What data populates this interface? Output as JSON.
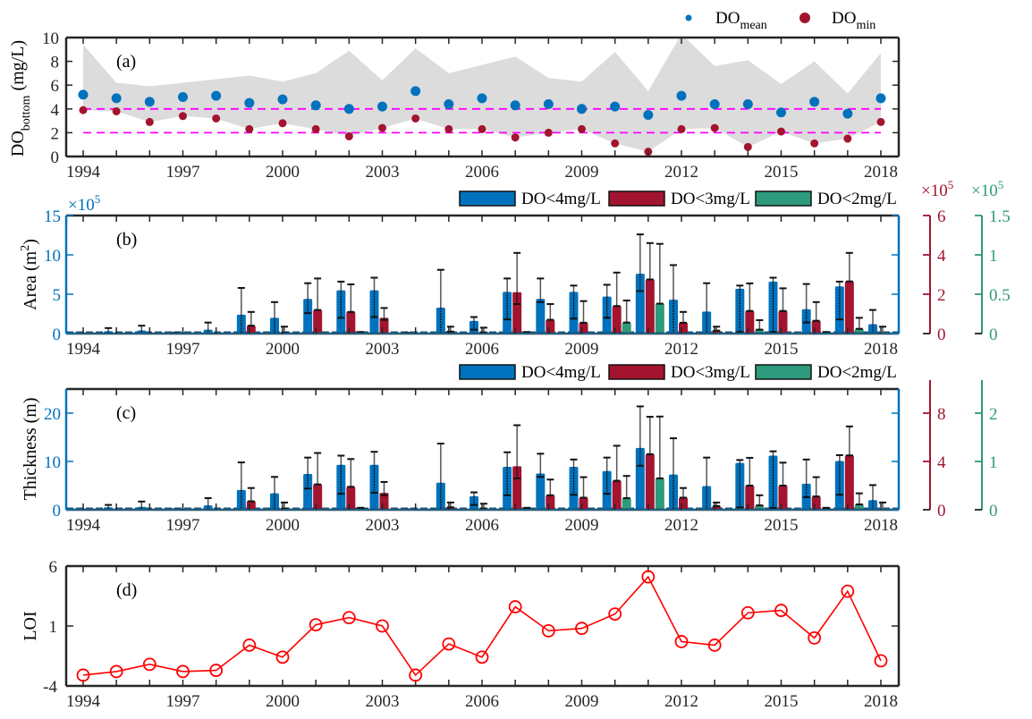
{
  "chart_data": [
    {
      "id": "a",
      "type": "scatter",
      "panel_label": "(a)",
      "ylabel": "DO",
      "ylabel_sub": "bottom",
      "ylabel_unit": " (mg/L)",
      "ylim": [
        0,
        10
      ],
      "yticks": [
        0,
        2,
        4,
        6,
        8,
        10
      ],
      "xlim": [
        1993.5,
        2018.5
      ],
      "xticks": [
        1994,
        1997,
        2000,
        2003,
        2006,
        2009,
        2012,
        2015,
        2018
      ],
      "x": [
        1994,
        1995,
        1996,
        1997,
        1998,
        1999,
        2000,
        2001,
        2002,
        2003,
        2004,
        2005,
        2006,
        2007,
        2008,
        2009,
        2010,
        2011,
        2012,
        2013,
        2014,
        2015,
        2016,
        2017,
        2018
      ],
      "legend": [
        {
          "base": "DO",
          "sub": "mean",
          "color": "#0072BD"
        },
        {
          "base": "DO",
          "sub": "min",
          "color": "#A2142F"
        }
      ],
      "series": [
        {
          "name": "DO_mean",
          "color": "#0072BD",
          "values": [
            5.2,
            4.9,
            4.6,
            5.0,
            5.1,
            4.5,
            4.8,
            4.3,
            4.0,
            4.2,
            5.5,
            4.4,
            4.9,
            4.3,
            4.4,
            4.0,
            4.2,
            3.5,
            5.1,
            4.4,
            4.4,
            3.7,
            4.6,
            3.6,
            4.9
          ]
        },
        {
          "name": "DO_min",
          "color": "#A2142F",
          "values": [
            3.9,
            3.8,
            2.9,
            3.4,
            3.2,
            2.3,
            2.8,
            2.3,
            1.7,
            2.4,
            3.2,
            2.3,
            2.3,
            1.6,
            2.0,
            2.3,
            1.1,
            0.4,
            2.3,
            2.4,
            0.8,
            2.1,
            1.1,
            1.5,
            2.9
          ]
        }
      ],
      "band": {
        "name": "DO range",
        "color": "#DCDCDC",
        "upper": [
          9.4,
          6.2,
          5.9,
          6.2,
          6.5,
          6.8,
          6.3,
          7.0,
          8.9,
          6.4,
          9.1,
          7.0,
          7.7,
          8.4,
          6.6,
          6.3,
          8.8,
          5.5,
          10.3,
          7.6,
          8.1,
          6.1,
          8.0,
          5.3,
          8.7
        ],
        "lower": [
          3.9,
          3.8,
          2.9,
          3.4,
          3.2,
          2.3,
          2.8,
          2.3,
          1.7,
          2.4,
          3.2,
          2.3,
          2.3,
          1.6,
          2.0,
          2.3,
          1.1,
          0.4,
          2.3,
          2.4,
          0.8,
          2.1,
          1.1,
          1.5,
          2.9
        ]
      },
      "reference_lines": [
        {
          "y": 4,
          "color": "#FF00FF",
          "style": "dashed"
        },
        {
          "y": 2,
          "color": "#FF00FF",
          "style": "dashed"
        }
      ]
    },
    {
      "id": "b",
      "type": "bar",
      "panel_label": "(b)",
      "ylabel": "Area (m",
      "ylabel_sup": "2",
      "ylabel_end": ")",
      "xticks": [
        1994,
        1997,
        2000,
        2003,
        2006,
        2009,
        2012,
        2015,
        2018
      ],
      "x": [
        1994,
        1995,
        1996,
        1997,
        1998,
        1999,
        2000,
        2001,
        2002,
        2003,
        2004,
        2005,
        2006,
        2007,
        2008,
        2009,
        2010,
        2011,
        2012,
        2013,
        2014,
        2015,
        2016,
        2017,
        2018
      ],
      "axes": [
        {
          "side": "left",
          "color": "#0072BD",
          "ylim": [
            0,
            15
          ],
          "yticks": [
            0,
            5,
            10,
            15
          ],
          "multiplier": "×10",
          "exponent": "5"
        },
        {
          "side": "right1",
          "color": "#A2142F",
          "ylim": [
            0,
            6
          ],
          "yticks": [
            0,
            2,
            4,
            6
          ],
          "multiplier": "×10",
          "exponent": "5"
        },
        {
          "side": "right2",
          "color": "#2E9A7C",
          "ylim": [
            0,
            1.5
          ],
          "yticks": [
            0,
            0.5,
            1,
            1.5
          ],
          "multiplier": "×10",
          "exponent": "5"
        }
      ],
      "legend": [
        {
          "label": "DO<4mg/L",
          "color": "#0072BD"
        },
        {
          "label": "DO<3mg/L",
          "color": "#A2142F"
        },
        {
          "label": "DO<2mg/L",
          "color": "#2E9A7C"
        }
      ],
      "series": [
        {
          "name": "DO<4mg/L",
          "axis": "left",
          "values": [
            0,
            0.3,
            0.4,
            0.1,
            0.5,
            2.4,
            2.0,
            4.4,
            5.5,
            5.5,
            0.1,
            3.3,
            1.6,
            5.3,
            4.4,
            5.3,
            4.7,
            7.6,
            4.3,
            2.8,
            5.7,
            6.6,
            3.1,
            6.0,
            1.2
          ],
          "err_low": [
            0,
            0.3,
            0.4,
            0.1,
            0.5,
            2.4,
            2.0,
            1.8,
            3.5,
            3.4,
            0.1,
            3.3,
            1.1,
            3.5,
            0.4,
            3.4,
            2.7,
            2.2,
            4.3,
            2.8,
            5.5,
            6.4,
            1.7,
            4.2,
            1.2
          ],
          "err_high": [
            0,
            0.7,
            1.0,
            0.1,
            1.4,
            5.8,
            4.0,
            6.4,
            6.6,
            7.1,
            0.1,
            8.1,
            2.1,
            7.0,
            7.0,
            6.1,
            6.2,
            12.6,
            8.7,
            6.4,
            6.1,
            7.1,
            6.3,
            6.6,
            3.0
          ]
        },
        {
          "name": "DO<3mg/L",
          "axis": "right1",
          "values": [
            0,
            0,
            0,
            0,
            0,
            0.4,
            0.05,
            1.2,
            1.1,
            0.8,
            0,
            0.1,
            0.05,
            2.1,
            0.7,
            0.55,
            1.4,
            2.75,
            0.55,
            0.15,
            1.15,
            1.15,
            0.65,
            2.65,
            0
          ],
          "err_low": [
            0,
            0,
            0,
            0,
            0,
            0,
            0,
            0,
            0,
            0.1,
            0,
            0,
            0,
            0.6,
            0,
            0,
            0,
            0,
            0,
            0,
            0,
            0,
            0,
            0,
            0
          ],
          "err_high": [
            0,
            0,
            0,
            0,
            0,
            1.1,
            0.35,
            2.8,
            2.5,
            1.3,
            0,
            0.35,
            0.3,
            4.1,
            1.5,
            1.65,
            3.1,
            4.6,
            1.1,
            0.35,
            2.55,
            2.3,
            1.6,
            4.1,
            0.35
          ]
        },
        {
          "name": "DO<2mg/L",
          "axis": "right2",
          "values": [
            0,
            0,
            0,
            0,
            0,
            0,
            0,
            0,
            0.01,
            0,
            0,
            0,
            0,
            0.01,
            0,
            0,
            0.14,
            0.38,
            0,
            0,
            0.05,
            0,
            0.01,
            0.06,
            0
          ],
          "err_low": [
            0,
            0,
            0,
            0,
            0,
            0,
            0,
            0,
            0,
            0,
            0,
            0,
            0,
            0,
            0,
            0,
            0,
            0,
            0,
            0,
            0,
            0,
            0,
            0,
            0
          ],
          "err_high": [
            0,
            0,
            0,
            0,
            0,
            0,
            0,
            0,
            0.02,
            0,
            0,
            0,
            0,
            0.02,
            0,
            0,
            0.42,
            1.14,
            0,
            0,
            0.17,
            0,
            0.02,
            0.2,
            0
          ]
        }
      ]
    },
    {
      "id": "c",
      "type": "bar",
      "panel_label": "(c)",
      "ylabel": "Thickness (m)",
      "xticks": [
        1994,
        1997,
        2000,
        2003,
        2006,
        2009,
        2012,
        2015,
        2018
      ],
      "x": [
        1994,
        1995,
        1996,
        1997,
        1998,
        1999,
        2000,
        2001,
        2002,
        2003,
        2004,
        2005,
        2006,
        2007,
        2008,
        2009,
        2010,
        2011,
        2012,
        2013,
        2014,
        2015,
        2016,
        2017,
        2018
      ],
      "axes": [
        {
          "side": "left",
          "color": "#0072BD",
          "ylim": [
            0,
            25
          ],
          "yticks": [
            0,
            10,
            20
          ]
        },
        {
          "side": "right1",
          "color": "#A2142F",
          "ylim": [
            0,
            10
          ],
          "yticks": [
            0,
            4,
            8
          ]
        },
        {
          "side": "right2",
          "color": "#2E9A7C",
          "ylim": [
            0,
            2.5
          ],
          "yticks": [
            0,
            1,
            2
          ]
        }
      ],
      "legend": [
        {
          "label": "DO<4mg/L",
          "color": "#0072BD"
        },
        {
          "label": "DO<3mg/L",
          "color": "#A2142F"
        },
        {
          "label": "DO<2mg/L",
          "color": "#2E9A7C"
        }
      ],
      "series": [
        {
          "name": "DO<4mg/L",
          "axis": "left",
          "values": [
            0,
            0.5,
            0.6,
            0.1,
            0.9,
            4.1,
            3.4,
            7.4,
            9.3,
            9.3,
            0.1,
            5.6,
            2.8,
            8.9,
            7.5,
            8.9,
            8.0,
            12.8,
            7.3,
            4.9,
            9.7,
            11.2,
            5.4,
            10.1,
            2.0
          ],
          "err_low": [
            0,
            0.5,
            0.6,
            0.1,
            0.9,
            4.1,
            3.4,
            3.0,
            6.0,
            5.8,
            0.1,
            5.6,
            1.8,
            5.9,
            0.7,
            5.8,
            4.7,
            3.7,
            7.3,
            4.9,
            9.2,
            10.8,
            2.8,
            7.0,
            2.0
          ],
          "err_high": [
            0,
            1.0,
            1.7,
            0.1,
            2.4,
            9.8,
            6.8,
            10.8,
            11.2,
            12.0,
            0.1,
            13.7,
            3.6,
            11.9,
            11.6,
            10.4,
            10.8,
            21.4,
            14.8,
            10.8,
            10.3,
            12.1,
            10.4,
            11.3,
            5.1
          ]
        },
        {
          "name": "DO<3mg/L",
          "axis": "right1",
          "values": [
            0,
            0,
            0,
            0,
            0,
            0.7,
            0.1,
            2.1,
            1.9,
            1.4,
            0,
            0.2,
            0.1,
            3.6,
            1.2,
            1.0,
            2.4,
            4.6,
            1.0,
            0.3,
            2.0,
            2.0,
            1.1,
            4.5,
            0
          ],
          "err_low": [
            0,
            0,
            0,
            0,
            0,
            0,
            0,
            0,
            0,
            0.2,
            0,
            0,
            0,
            1.0,
            0,
            0,
            0,
            0,
            0,
            0,
            0,
            0,
            0,
            0,
            0
          ],
          "err_high": [
            0,
            0,
            0,
            0,
            0,
            1.8,
            0.6,
            4.7,
            4.2,
            2.3,
            0,
            0.6,
            0.5,
            7.0,
            2.5,
            2.7,
            5.3,
            7.7,
            1.8,
            0.6,
            4.3,
            3.9,
            2.7,
            6.9,
            0.6
          ]
        },
        {
          "name": "DO<2mg/L",
          "axis": "right2",
          "values": [
            0,
            0,
            0,
            0,
            0,
            0,
            0,
            0,
            0.02,
            0,
            0,
            0,
            0,
            0.02,
            0,
            0,
            0.24,
            0.65,
            0,
            0,
            0.09,
            0,
            0.02,
            0.11,
            0
          ],
          "err_low": [
            0,
            0,
            0,
            0,
            0,
            0,
            0,
            0,
            0,
            0,
            0,
            0,
            0,
            0,
            0,
            0,
            0,
            0,
            0,
            0,
            0,
            0,
            0,
            0,
            0
          ],
          "err_high": [
            0,
            0,
            0,
            0,
            0,
            0,
            0,
            0,
            0.04,
            0,
            0,
            0,
            0,
            0.04,
            0,
            0,
            0.7,
            1.93,
            0,
            0,
            0.3,
            0,
            0.04,
            0.34,
            0
          ]
        }
      ]
    },
    {
      "id": "d",
      "type": "line",
      "panel_label": "(d)",
      "ylabel": "LOI",
      "ylim": [
        -4,
        6
      ],
      "yticks": [
        -4,
        1,
        6
      ],
      "xticks": [
        1994,
        1997,
        2000,
        2003,
        2006,
        2009,
        2012,
        2015,
        2018
      ],
      "x": [
        1994,
        1995,
        1996,
        1997,
        1998,
        1999,
        2000,
        2001,
        2002,
        2003,
        2004,
        2005,
        2006,
        2007,
        2008,
        2009,
        2010,
        2011,
        2012,
        2013,
        2014,
        2015,
        2016,
        2017,
        2018
      ],
      "series": [
        {
          "name": "LOI",
          "color": "#FF0000",
          "marker": "circle",
          "values": [
            -3.1,
            -2.8,
            -2.2,
            -2.8,
            -2.7,
            -0.6,
            -1.6,
            1.1,
            1.7,
            1.0,
            -3.1,
            -0.5,
            -1.6,
            2.6,
            0.6,
            0.8,
            2.0,
            5.1,
            -0.3,
            -0.6,
            2.1,
            2.3,
            0.0,
            3.9,
            -1.9
          ]
        }
      ]
    }
  ]
}
